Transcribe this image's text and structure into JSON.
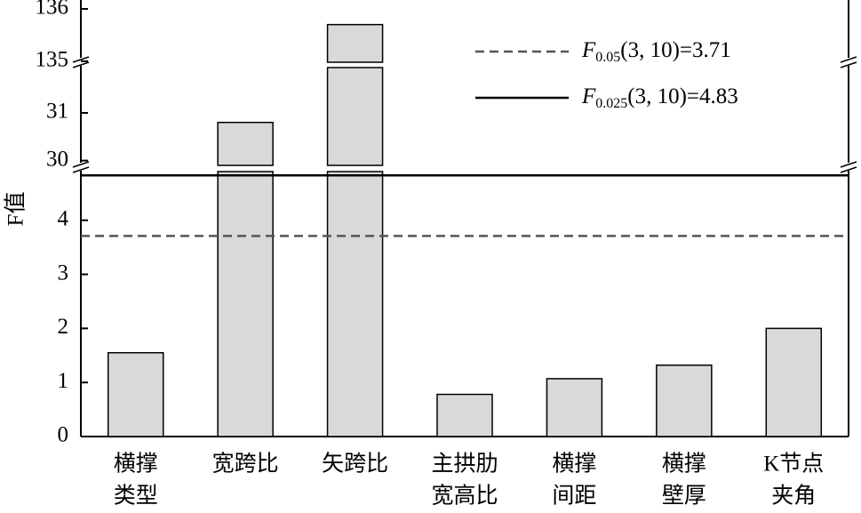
{
  "chart_data": {
    "type": "bar",
    "y_label": "F值",
    "categories": [
      [
        "横撑",
        "类型"
      ],
      [
        "宽跨比"
      ],
      [
        "矢跨比"
      ],
      [
        "主拱肋",
        "宽高比"
      ],
      [
        "横撑",
        "间距"
      ],
      [
        "横撑",
        "壁厚"
      ],
      [
        "K节点",
        "夹角"
      ]
    ],
    "values": [
      1.55,
      30.8,
      135.7,
      0.78,
      1.07,
      1.32,
      2.0
    ],
    "color": "#d9d9d9",
    "y_segments": [
      {
        "ylim": [
          0,
          4.9
        ],
        "yticks": [
          0,
          1,
          2,
          3,
          4
        ]
      },
      {
        "ylim": [
          29.9,
          31.95
        ],
        "yticks": [
          30,
          31
        ]
      },
      {
        "ylim": [
          134.98,
          136
        ],
        "yticks": [
          135,
          136
        ]
      }
    ],
    "reference_lines": [
      {
        "value": 3.71,
        "symbol": "F",
        "subscript": "0.05",
        "text": "(3, 10)=3.71",
        "style": "dashed",
        "color": "#555555"
      },
      {
        "value": 4.83,
        "symbol": "F",
        "subscript": "0.025",
        "text": "(3, 10)=4.83",
        "style": "solid",
        "color": "#000000"
      }
    ]
  }
}
